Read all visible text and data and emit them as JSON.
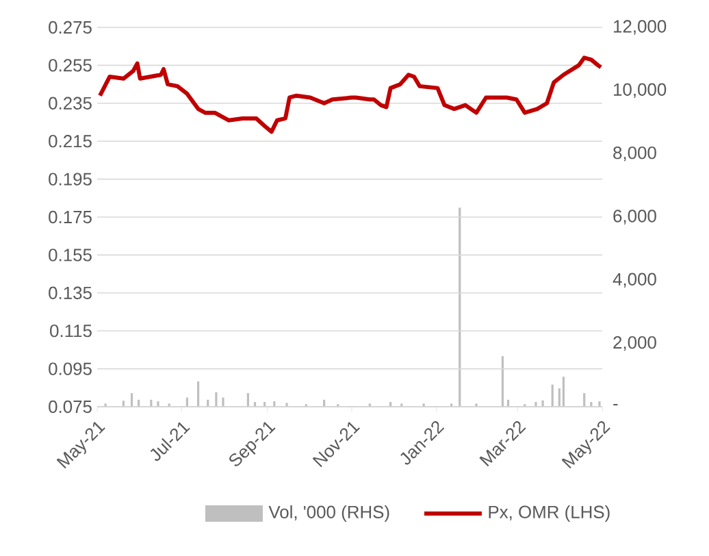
{
  "chart_data": {
    "type": "line",
    "xlim": [
      "2021-05-01",
      "2022-05-01"
    ],
    "xticks": [
      {
        "value": "2021-05-01",
        "label": "May-21"
      },
      {
        "value": "2021-07-01",
        "label": "Jul-21"
      },
      {
        "value": "2021-09-01",
        "label": "Sep-21"
      },
      {
        "value": "2021-11-01",
        "label": "Nov-21"
      },
      {
        "value": "2022-01-01",
        "label": "Jan-22"
      },
      {
        "value": "2022-03-01",
        "label": "Mar-22"
      },
      {
        "value": "2022-05-01",
        "label": "May-22"
      }
    ],
    "ylim": [
      0.075,
      0.275
    ],
    "yticks": [
      0.075,
      0.095,
      0.115,
      0.135,
      0.155,
      0.175,
      0.195,
      0.215,
      0.235,
      0.255,
      0.275
    ],
    "y2lim": [
      0,
      12000
    ],
    "y2ticks": [
      {
        "value": 0,
        "label": "-"
      },
      {
        "value": 2000,
        "label": "2,000"
      },
      {
        "value": 4000,
        "label": "4,000"
      },
      {
        "value": 6000,
        "label": "6,000"
      },
      {
        "value": 8000,
        "label": "8,000"
      },
      {
        "value": 10000,
        "label": "10,000"
      },
      {
        "value": 12000,
        "label": "12,000"
      }
    ],
    "grid": "y",
    "legend": "bottom",
    "series": [
      {
        "name": "Vol, '000 (RHS)",
        "type": "bar",
        "axis": "y2",
        "color": "#bfbfbf",
        "x": [
          "2021-05-07",
          "2021-05-20",
          "2021-05-26",
          "2021-05-31",
          "2021-06-09",
          "2021-06-14",
          "2021-06-22",
          "2021-07-05",
          "2021-07-13",
          "2021-07-20",
          "2021-07-26",
          "2021-07-31",
          "2021-08-18",
          "2021-08-23",
          "2021-08-30",
          "2021-09-06",
          "2021-09-15",
          "2021-09-29",
          "2021-10-12",
          "2021-10-22",
          "2021-11-14",
          "2021-11-29",
          "2021-12-07",
          "2021-12-23",
          "2022-01-12",
          "2022-01-18",
          "2022-01-30",
          "2022-02-18",
          "2022-02-22",
          "2022-03-06",
          "2022-03-14",
          "2022-03-19",
          "2022-03-26",
          "2022-03-31",
          "2022-04-03",
          "2022-04-18",
          "2022-04-23",
          "2022-04-29"
        ],
        "values": [
          100,
          190,
          430,
          220,
          220,
          170,
          100,
          290,
          800,
          220,
          460,
          290,
          430,
          150,
          150,
          170,
          120,
          80,
          220,
          80,
          100,
          150,
          100,
          100,
          100,
          6300,
          100,
          1600,
          220,
          80,
          150,
          200,
          700,
          580,
          950,
          430,
          150,
          170
        ]
      },
      {
        "name": "Px, OMR (LHS)",
        "color": "#c00000",
        "x": [
          "2021-05-03",
          "2021-05-10",
          "2021-05-20",
          "2021-05-27",
          "2021-05-30",
          "2021-06-01",
          "2021-06-16",
          "2021-06-18",
          "2021-06-21",
          "2021-06-28",
          "2021-07-05",
          "2021-07-13",
          "2021-07-18",
          "2021-07-25",
          "2021-08-04",
          "2021-08-14",
          "2021-08-24",
          "2021-08-30",
          "2021-09-04",
          "2021-09-08",
          "2021-09-14",
          "2021-09-17",
          "2021-09-22",
          "2021-10-02",
          "2021-10-12",
          "2021-10-18",
          "2021-11-01",
          "2021-11-04",
          "2021-11-14",
          "2021-11-17",
          "2021-11-22",
          "2021-11-26",
          "2021-11-29",
          "2021-12-06",
          "2021-12-12",
          "2021-12-16",
          "2021-12-20",
          "2022-01-02",
          "2022-01-07",
          "2022-01-14",
          "2022-01-22",
          "2022-01-30",
          "2022-02-06",
          "2022-02-21",
          "2022-02-28",
          "2022-03-06",
          "2022-03-15",
          "2022-03-22",
          "2022-03-27",
          "2022-04-03",
          "2022-04-14",
          "2022-04-18",
          "2022-04-23",
          "2022-04-28",
          "2022-04-30"
        ],
        "values": [
          0.239,
          0.249,
          0.248,
          0.252,
          0.256,
          0.248,
          0.25,
          0.253,
          0.245,
          0.244,
          0.24,
          0.232,
          0.23,
          0.23,
          0.226,
          0.227,
          0.227,
          0.223,
          0.22,
          0.226,
          0.227,
          0.238,
          0.239,
          0.238,
          0.235,
          0.237,
          0.238,
          0.238,
          0.237,
          0.237,
          0.234,
          0.233,
          0.243,
          0.245,
          0.25,
          0.249,
          0.244,
          0.243,
          0.234,
          0.232,
          0.234,
          0.23,
          0.238,
          0.238,
          0.237,
          0.23,
          0.232,
          0.235,
          0.246,
          0.25,
          0.255,
          0.259,
          0.258,
          0.255,
          0.254
        ]
      }
    ]
  }
}
